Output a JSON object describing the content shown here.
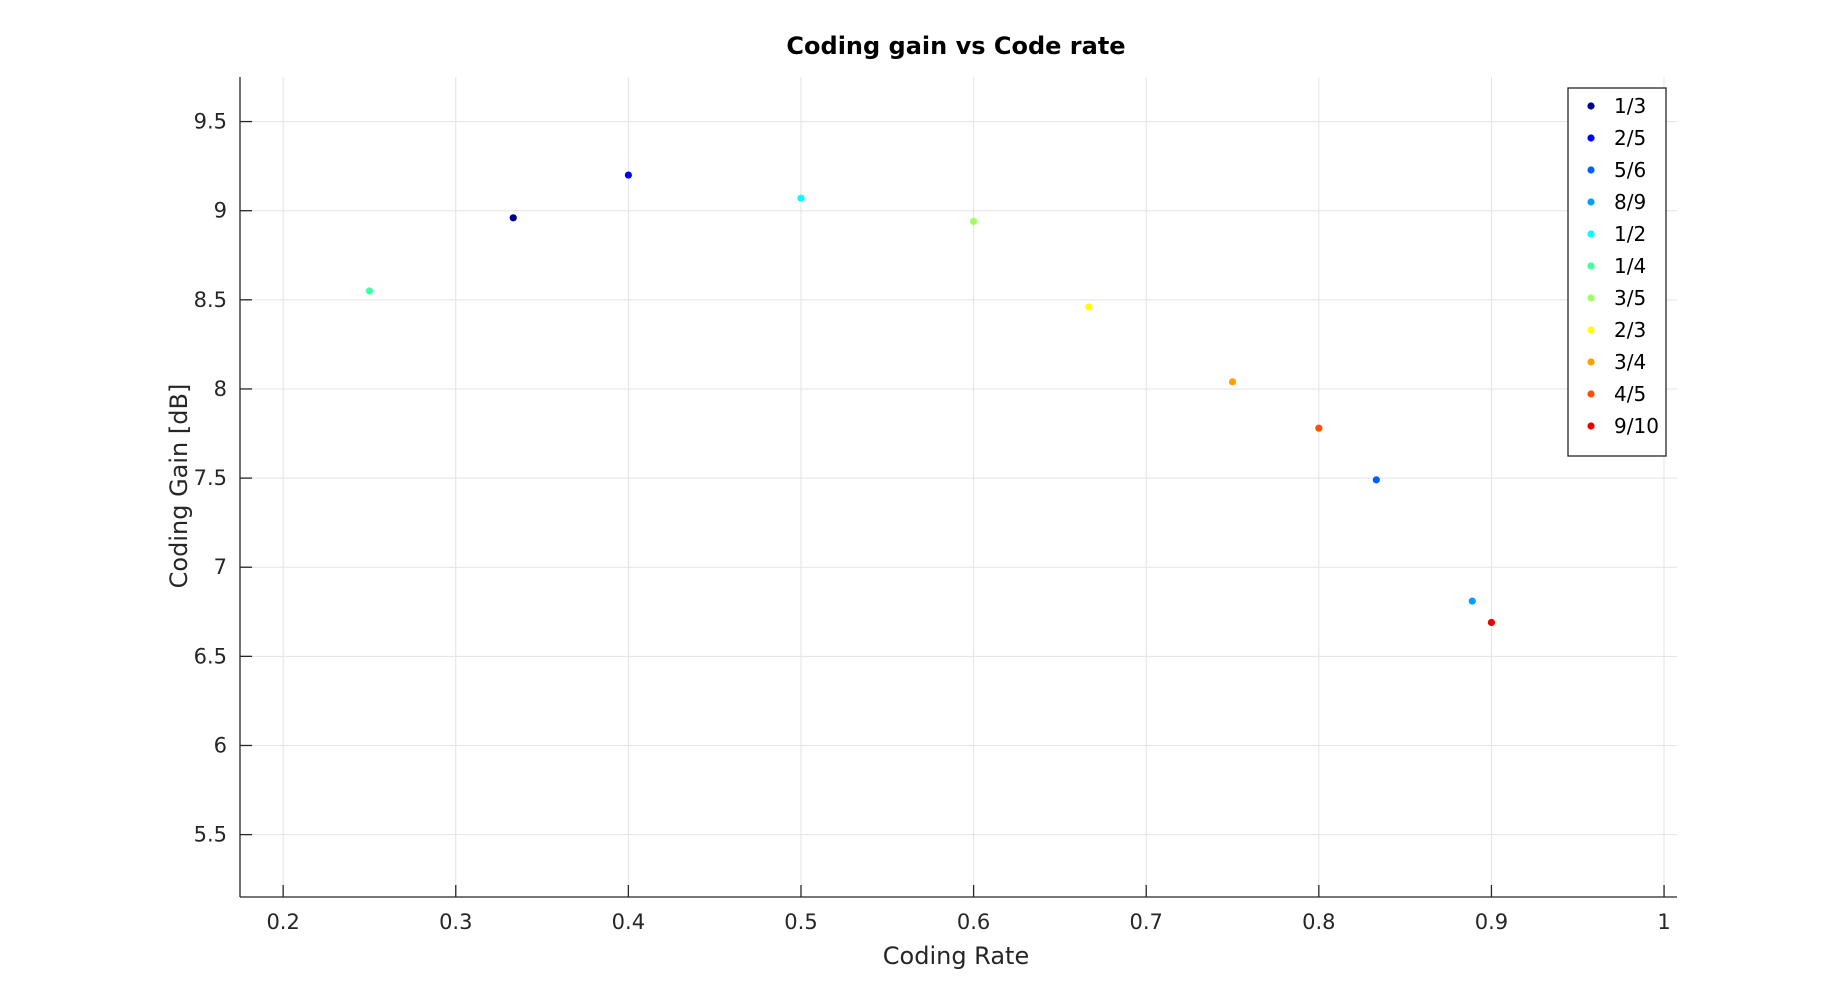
{
  "chart_data": {
    "type": "scatter",
    "title": "Coding gain vs Code rate",
    "xlabel": "Coding Rate",
    "ylabel": "Coding Gain [dB]",
    "xlim": [
      0.175,
      1.0075
    ],
    "ylim": [
      5.15,
      9.75
    ],
    "xticks": [
      0.2,
      0.3,
      0.4,
      0.5,
      0.6,
      0.7,
      0.8,
      0.9,
      1
    ],
    "xtick_labels": [
      "0.2",
      "0.3",
      "0.4",
      "0.5",
      "0.6",
      "0.7",
      "0.8",
      "0.9",
      "1"
    ],
    "yticks": [
      5.5,
      6,
      6.5,
      7,
      7.5,
      8,
      8.5,
      9,
      9.5
    ],
    "ytick_labels": [
      "5.5",
      "6",
      "6.5",
      "7",
      "7.5",
      "8",
      "8.5",
      "9",
      "9.5"
    ],
    "grid": true,
    "legend_position": "top-right",
    "series": [
      {
        "name": "1/3",
        "color": "#00008f",
        "x": [
          0.3333
        ],
        "y": [
          8.96
        ]
      },
      {
        "name": "2/5",
        "color": "#0000ff",
        "x": [
          0.4
        ],
        "y": [
          9.2
        ]
      },
      {
        "name": "5/6",
        "color": "#0060ff",
        "x": [
          0.8333
        ],
        "y": [
          7.49
        ]
      },
      {
        "name": "8/9",
        "color": "#00a0ff",
        "x": [
          0.8889
        ],
        "y": [
          6.81
        ]
      },
      {
        "name": "1/2",
        "color": "#00ffff",
        "x": [
          0.5
        ],
        "y": [
          9.07
        ]
      },
      {
        "name": "1/4",
        "color": "#40ff9f",
        "x": [
          0.25
        ],
        "y": [
          8.55
        ]
      },
      {
        "name": "3/5",
        "color": "#9fff60",
        "x": [
          0.6
        ],
        "y": [
          8.94
        ]
      },
      {
        "name": "2/3",
        "color": "#ffff00",
        "x": [
          0.6667
        ],
        "y": [
          8.46
        ]
      },
      {
        "name": "3/4",
        "color": "#ffa000",
        "x": [
          0.75
        ],
        "y": [
          8.04
        ]
      },
      {
        "name": "4/5",
        "color": "#ff5000",
        "x": [
          0.8
        ],
        "y": [
          7.78
        ]
      },
      {
        "name": "9/10",
        "color": "#ef0000",
        "x": [
          0.9
        ],
        "y": [
          6.69
        ]
      }
    ]
  }
}
